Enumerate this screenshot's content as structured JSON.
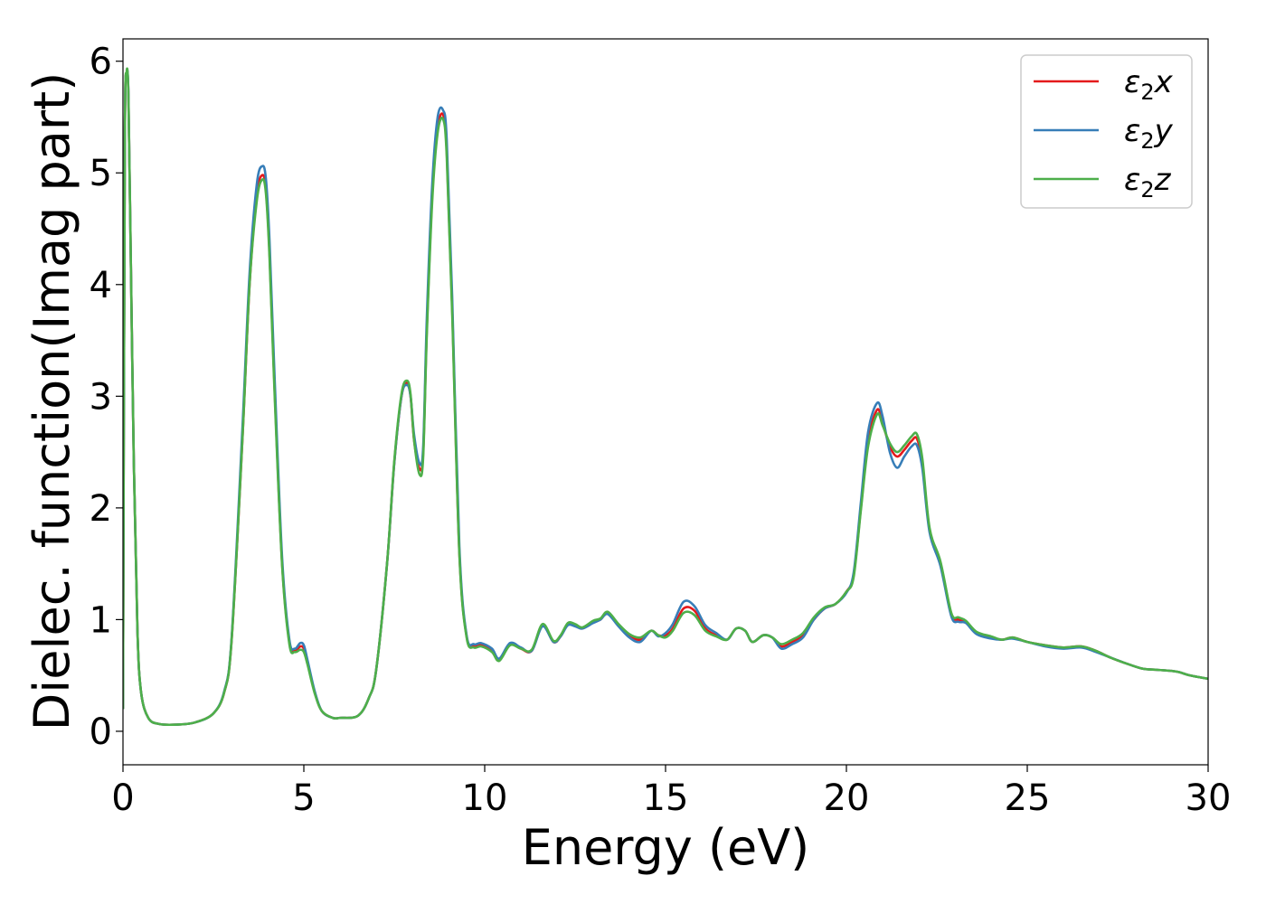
{
  "chart_data": {
    "type": "line",
    "xlabel": "Energy (eV)",
    "ylabel": "Dielec. function(Imag part)",
    "xlim": [
      0,
      30
    ],
    "ylim": [
      -0.3,
      6.2
    ],
    "x_ticks": [
      0,
      5,
      10,
      15,
      20,
      25,
      30
    ],
    "y_ticks": [
      0,
      1,
      2,
      3,
      4,
      5,
      6
    ],
    "grid": false,
    "legend_position": "top-right",
    "colors": {
      "eps2x": "#e41a1c",
      "eps2y": "#377eb8",
      "eps2z": "#4daf4a"
    },
    "series": [
      {
        "name": "ε2x",
        "legend_main": "ε",
        "legend_sub": "2",
        "legend_var": "x",
        "color": "#e41a1c",
        "x": [
          0,
          0.05,
          0.1,
          0.15,
          0.2,
          0.3,
          0.4,
          0.5,
          0.7,
          1.0,
          1.5,
          2.0,
          2.5,
          2.8,
          3.0,
          3.3,
          3.5,
          3.7,
          3.85,
          3.95,
          4.05,
          4.2,
          4.4,
          4.6,
          4.75,
          4.9,
          5.0,
          5.1,
          5.3,
          5.5,
          5.8,
          6.0,
          6.5,
          6.8,
          7.0,
          7.3,
          7.5,
          7.7,
          7.85,
          7.95,
          8.05,
          8.2,
          8.3,
          8.4,
          8.55,
          8.7,
          8.85,
          8.95,
          9.1,
          9.3,
          9.5,
          9.7,
          9.9,
          10.2,
          10.4,
          10.7,
          11.0,
          11.3,
          11.6,
          11.9,
          12.1,
          12.3,
          12.5,
          12.7,
          13.0,
          13.2,
          13.4,
          13.7,
          14.0,
          14.3,
          14.6,
          14.8,
          15.0,
          15.2,
          15.5,
          15.8,
          16.1,
          16.4,
          16.7,
          16.95,
          17.2,
          17.4,
          17.7,
          17.95,
          18.2,
          18.5,
          18.8,
          19.1,
          19.4,
          19.7,
          20.0,
          20.2,
          20.4,
          20.6,
          20.85,
          21.0,
          21.2,
          21.4,
          21.6,
          21.8,
          21.95,
          22.1,
          22.3,
          22.6,
          22.9,
          23.1,
          23.3,
          23.6,
          24.0,
          24.3,
          24.6,
          25.0,
          25.5,
          26.0,
          26.5,
          26.9,
          27.3,
          27.8,
          28.2,
          28.6,
          29.0,
          29.2,
          29.5,
          30.0
        ],
        "y": [
          0.2,
          5.2,
          5.88,
          5.7,
          4.6,
          2.4,
          0.9,
          0.35,
          0.12,
          0.065,
          0.06,
          0.08,
          0.16,
          0.35,
          0.8,
          2.6,
          4.0,
          4.8,
          4.98,
          4.85,
          4.3,
          3.0,
          1.5,
          0.8,
          0.72,
          0.76,
          0.74,
          0.62,
          0.35,
          0.18,
          0.12,
          0.12,
          0.14,
          0.3,
          0.55,
          1.5,
          2.4,
          3.0,
          3.12,
          3.0,
          2.6,
          2.35,
          2.5,
          3.6,
          4.8,
          5.4,
          5.52,
          5.2,
          3.8,
          1.6,
          0.85,
          0.76,
          0.77,
          0.72,
          0.64,
          0.78,
          0.74,
          0.72,
          0.95,
          0.8,
          0.85,
          0.96,
          0.95,
          0.92,
          0.98,
          1.0,
          1.06,
          0.95,
          0.86,
          0.82,
          0.9,
          0.86,
          0.86,
          0.92,
          1.1,
          1.08,
          0.92,
          0.86,
          0.82,
          0.92,
          0.9,
          0.8,
          0.86,
          0.84,
          0.76,
          0.8,
          0.86,
          1.0,
          1.1,
          1.14,
          1.25,
          1.4,
          2.0,
          2.6,
          2.88,
          2.76,
          2.55,
          2.46,
          2.52,
          2.6,
          2.62,
          2.4,
          1.8,
          1.5,
          1.05,
          1.0,
          0.98,
          0.88,
          0.84,
          0.82,
          0.84,
          0.8,
          0.77,
          0.75,
          0.76,
          0.72,
          0.66,
          0.6,
          0.56,
          0.55,
          0.54,
          0.53,
          0.5,
          0.47
        ]
      },
      {
        "name": "ε2y",
        "legend_main": "ε",
        "legend_sub": "2",
        "legend_var": "y",
        "color": "#377eb8",
        "x": [
          0,
          0.05,
          0.1,
          0.15,
          0.2,
          0.3,
          0.4,
          0.5,
          0.7,
          1.0,
          1.5,
          2.0,
          2.5,
          2.8,
          3.0,
          3.3,
          3.5,
          3.7,
          3.85,
          3.95,
          4.05,
          4.2,
          4.4,
          4.6,
          4.75,
          4.9,
          5.0,
          5.1,
          5.3,
          5.5,
          5.8,
          6.0,
          6.5,
          6.8,
          7.0,
          7.3,
          7.5,
          7.7,
          7.85,
          7.95,
          8.05,
          8.2,
          8.3,
          8.4,
          8.55,
          8.7,
          8.85,
          8.95,
          9.1,
          9.3,
          9.5,
          9.7,
          9.9,
          10.2,
          10.4,
          10.7,
          11.0,
          11.3,
          11.6,
          11.9,
          12.1,
          12.3,
          12.5,
          12.7,
          13.0,
          13.2,
          13.4,
          13.7,
          14.0,
          14.3,
          14.6,
          14.8,
          15.0,
          15.2,
          15.5,
          15.8,
          16.1,
          16.4,
          16.7,
          16.95,
          17.2,
          17.4,
          17.7,
          17.95,
          18.2,
          18.5,
          18.8,
          19.1,
          19.4,
          19.7,
          20.0,
          20.2,
          20.4,
          20.6,
          20.85,
          21.0,
          21.2,
          21.4,
          21.6,
          21.8,
          21.95,
          22.1,
          22.3,
          22.6,
          22.9,
          23.1,
          23.3,
          23.6,
          24.0,
          24.3,
          24.6,
          25.0,
          25.5,
          26.0,
          26.5,
          26.9,
          27.3,
          27.8,
          28.2,
          28.6,
          29.0,
          29.2,
          29.5,
          30.0
        ],
        "y": [
          0.2,
          5.2,
          5.88,
          5.72,
          4.6,
          2.4,
          0.9,
          0.35,
          0.12,
          0.065,
          0.06,
          0.08,
          0.16,
          0.36,
          0.82,
          2.7,
          4.1,
          4.9,
          5.06,
          4.95,
          4.4,
          3.1,
          1.55,
          0.82,
          0.74,
          0.79,
          0.77,
          0.64,
          0.36,
          0.18,
          0.12,
          0.12,
          0.14,
          0.3,
          0.55,
          1.5,
          2.4,
          3.0,
          3.1,
          3.0,
          2.65,
          2.4,
          2.55,
          3.7,
          4.9,
          5.5,
          5.56,
          5.3,
          3.9,
          1.65,
          0.86,
          0.78,
          0.79,
          0.74,
          0.65,
          0.79,
          0.75,
          0.72,
          0.94,
          0.8,
          0.85,
          0.95,
          0.94,
          0.92,
          0.97,
          1.0,
          1.05,
          0.94,
          0.84,
          0.8,
          0.9,
          0.85,
          0.88,
          0.96,
          1.16,
          1.12,
          0.95,
          0.88,
          0.82,
          0.92,
          0.9,
          0.8,
          0.86,
          0.84,
          0.74,
          0.78,
          0.84,
          1.0,
          1.1,
          1.14,
          1.24,
          1.42,
          2.05,
          2.68,
          2.94,
          2.82,
          2.5,
          2.36,
          2.46,
          2.55,
          2.56,
          2.35,
          1.78,
          1.48,
          1.03,
          0.98,
          0.97,
          0.87,
          0.83,
          0.82,
          0.83,
          0.8,
          0.76,
          0.74,
          0.75,
          0.71,
          0.66,
          0.6,
          0.56,
          0.55,
          0.54,
          0.53,
          0.5,
          0.47
        ]
      },
      {
        "name": "ε2z",
        "legend_main": "ε",
        "legend_sub": "2",
        "legend_var": "z",
        "color": "#4daf4a",
        "x": [
          0,
          0.05,
          0.1,
          0.15,
          0.2,
          0.3,
          0.4,
          0.5,
          0.7,
          1.0,
          1.5,
          2.0,
          2.5,
          2.8,
          3.0,
          3.3,
          3.5,
          3.7,
          3.85,
          3.95,
          4.05,
          4.2,
          4.4,
          4.6,
          4.75,
          4.9,
          5.0,
          5.1,
          5.3,
          5.5,
          5.8,
          6.0,
          6.5,
          6.8,
          7.0,
          7.3,
          7.5,
          7.7,
          7.85,
          7.95,
          8.05,
          8.2,
          8.3,
          8.4,
          8.55,
          8.7,
          8.85,
          8.95,
          9.1,
          9.3,
          9.5,
          9.7,
          9.9,
          10.2,
          10.4,
          10.7,
          11.0,
          11.3,
          11.6,
          11.9,
          12.1,
          12.3,
          12.5,
          12.7,
          13.0,
          13.2,
          13.4,
          13.7,
          14.0,
          14.3,
          14.6,
          14.8,
          15.0,
          15.2,
          15.5,
          15.8,
          16.1,
          16.4,
          16.7,
          16.95,
          17.2,
          17.4,
          17.7,
          17.95,
          18.2,
          18.5,
          18.8,
          19.1,
          19.4,
          19.7,
          20.0,
          20.2,
          20.4,
          20.6,
          20.85,
          21.0,
          21.2,
          21.4,
          21.6,
          21.8,
          21.95,
          22.1,
          22.3,
          22.6,
          22.9,
          23.1,
          23.3,
          23.6,
          24.0,
          24.3,
          24.6,
          25.0,
          25.5,
          26.0,
          26.5,
          26.9,
          27.3,
          27.8,
          28.2,
          28.6,
          29.0,
          29.2,
          29.5,
          30.0
        ],
        "y": [
          0.2,
          5.2,
          5.9,
          5.7,
          4.6,
          2.4,
          0.9,
          0.35,
          0.12,
          0.065,
          0.06,
          0.08,
          0.16,
          0.35,
          0.8,
          2.6,
          4.0,
          4.75,
          4.94,
          4.82,
          4.25,
          2.95,
          1.48,
          0.78,
          0.71,
          0.73,
          0.71,
          0.6,
          0.34,
          0.18,
          0.12,
          0.12,
          0.14,
          0.3,
          0.55,
          1.5,
          2.42,
          3.02,
          3.14,
          3.02,
          2.6,
          2.3,
          2.46,
          3.55,
          4.75,
          5.36,
          5.48,
          5.15,
          3.75,
          1.58,
          0.84,
          0.75,
          0.76,
          0.71,
          0.63,
          0.77,
          0.74,
          0.73,
          0.96,
          0.81,
          0.86,
          0.97,
          0.96,
          0.93,
          0.99,
          1.01,
          1.07,
          0.96,
          0.87,
          0.84,
          0.9,
          0.86,
          0.84,
          0.9,
          1.06,
          1.04,
          0.9,
          0.85,
          0.82,
          0.92,
          0.9,
          0.8,
          0.86,
          0.84,
          0.78,
          0.82,
          0.88,
          1.02,
          1.11,
          1.14,
          1.25,
          1.38,
          1.98,
          2.55,
          2.84,
          2.74,
          2.58,
          2.5,
          2.56,
          2.64,
          2.66,
          2.44,
          1.82,
          1.52,
          1.06,
          1.02,
          0.99,
          0.89,
          0.85,
          0.82,
          0.84,
          0.8,
          0.77,
          0.75,
          0.76,
          0.72,
          0.66,
          0.6,
          0.56,
          0.55,
          0.54,
          0.53,
          0.5,
          0.47
        ]
      }
    ]
  }
}
